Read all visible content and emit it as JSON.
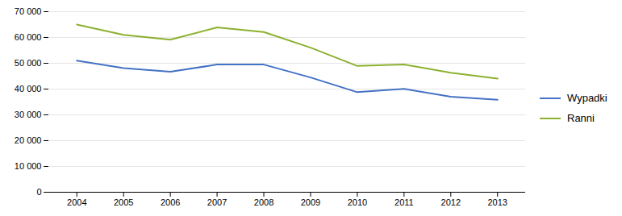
{
  "chart_data": {
    "type": "line",
    "x": [
      2004,
      2005,
      2006,
      2007,
      2008,
      2009,
      2010,
      2011,
      2012,
      2013
    ],
    "series": [
      {
        "name": "Wypadki",
        "color": "#4472C4",
        "values": [
          51000,
          48100,
          46700,
          49500,
          49500,
          44500,
          38800,
          40065,
          37046,
          35847
        ]
      },
      {
        "name": "Ranni",
        "color": "#8DB031",
        "values": [
          65000,
          61000,
          59123,
          63894,
          62097,
          56046,
          48952,
          49501,
          46327,
          44059
        ]
      }
    ],
    "xlim": [
      2003.4,
      2013.6
    ],
    "xticks": [
      2004,
      2005,
      2006,
      2007,
      2008,
      2009,
      2010,
      2011,
      2012,
      2013
    ],
    "ylim": [
      0,
      70000
    ],
    "yticks": [
      0,
      {
        "value": 10000,
        "label": "10 000"
      },
      {
        "value": 20000,
        "label": "20 000"
      },
      {
        "value": 30000,
        "label": "30 000"
      },
      {
        "value": 40000,
        "label": "40 000"
      },
      {
        "value": 50000,
        "label": "50 000"
      },
      {
        "value": 60000,
        "label": "60 000"
      },
      {
        "value": 70000,
        "label": "70 000"
      }
    ],
    "grid": true,
    "legend": "right"
  }
}
